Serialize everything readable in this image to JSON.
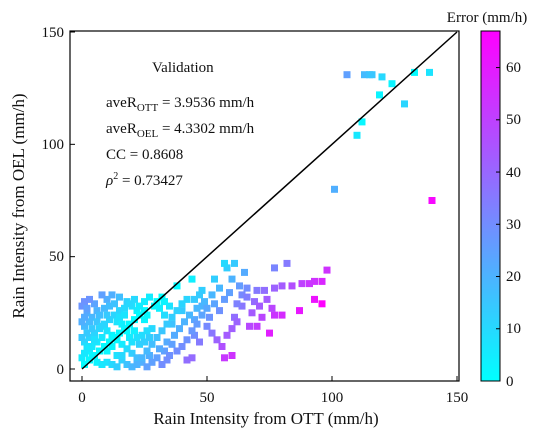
{
  "chart_data": {
    "type": "scatter",
    "title": "",
    "xlabel": "Rain Intensity from OTT (mm/h)",
    "ylabel": "Rain Intensity from OEL (mm/h)",
    "xlim": [
      -5,
      150
    ],
    "ylim": [
      -5,
      150
    ],
    "xticks": [
      "0",
      "50",
      "100",
      "150"
    ],
    "yticks": [
      "0",
      "50",
      "100",
      "150"
    ],
    "grid": false,
    "reference_line": {
      "from": [
        0,
        0
      ],
      "to": [
        150,
        150
      ],
      "color": "#000000"
    },
    "colorbar": {
      "label": "Error (mm/h)",
      "range": [
        0,
        67
      ],
      "ticks": [
        "0",
        "10",
        "20",
        "30",
        "40",
        "50",
        "60"
      ],
      "color_low": "#00ffff",
      "color_high": "#ff00ff"
    },
    "annotation": {
      "title": "Validation",
      "lines": [
        {
          "prefix": "aveR",
          "subscript": "OTT",
          "suffix": " = 3.9536 mm/h"
        },
        {
          "prefix": "aveR",
          "subscript": "OEL",
          "suffix": " = 4.3302 mm/h"
        },
        {
          "prefix": "CC = 0.8608",
          "subscript": "",
          "suffix": ""
        },
        {
          "prefix": "ρ",
          "superscript": "2",
          "suffix": " = 0.73427"
        }
      ]
    },
    "points": [
      [
        106,
        131
      ],
      [
        113,
        131
      ],
      [
        115,
        131
      ],
      [
        116,
        131
      ],
      [
        120,
        130
      ],
      [
        124,
        127
      ],
      [
        119,
        122
      ],
      [
        133,
        132
      ],
      [
        139,
        132
      ],
      [
        129,
        118
      ],
      [
        112,
        110
      ],
      [
        110,
        104
      ],
      [
        101,
        80
      ],
      [
        140,
        75
      ],
      [
        98,
        44
      ],
      [
        96,
        39
      ],
      [
        93,
        39
      ],
      [
        91,
        38
      ],
      [
        88,
        38
      ],
      [
        84,
        37
      ],
      [
        80,
        37
      ],
      [
        77,
        36
      ],
      [
        73,
        35
      ],
      [
        70,
        35
      ],
      [
        66,
        36
      ],
      [
        63,
        37
      ],
      [
        82,
        47
      ],
      [
        77,
        45
      ],
      [
        61,
        47
      ],
      [
        58,
        45
      ],
      [
        57,
        47
      ],
      [
        65,
        43
      ],
      [
        60,
        40
      ],
      [
        53,
        40
      ],
      [
        44,
        40
      ],
      [
        38,
        37
      ],
      [
        48,
        35
      ],
      [
        93,
        31
      ],
      [
        96,
        29
      ],
      [
        87,
        26
      ],
      [
        80,
        24
      ],
      [
        77,
        24
      ],
      [
        72,
        23
      ],
      [
        67,
        19
      ],
      [
        70,
        19
      ],
      [
        75,
        16
      ],
      [
        60,
        6
      ],
      [
        57,
        5
      ],
      [
        47,
        12
      ],
      [
        45,
        15
      ],
      [
        42,
        4
      ],
      [
        44,
        5
      ],
      [
        33,
        8
      ],
      [
        27,
        6
      ],
      [
        68,
        25
      ],
      [
        64,
        28
      ],
      [
        61,
        23
      ],
      [
        55,
        26
      ],
      [
        51,
        23
      ],
      [
        48,
        28
      ],
      [
        45,
        22
      ],
      [
        40,
        26
      ],
      [
        36,
        20
      ],
      [
        33,
        24
      ],
      [
        28,
        18
      ],
      [
        25,
        22
      ],
      [
        22,
        26
      ],
      [
        20,
        28
      ],
      [
        18,
        30
      ],
      [
        15,
        32
      ],
      [
        12,
        33
      ],
      [
        10,
        31
      ],
      [
        8,
        33
      ],
      [
        5,
        29
      ],
      [
        3,
        31
      ],
      [
        1,
        30
      ],
      [
        0,
        28
      ],
      [
        2,
        25
      ],
      [
        4,
        23
      ],
      [
        6,
        21
      ],
      [
        8,
        19
      ],
      [
        10,
        17
      ],
      [
        12,
        15
      ],
      [
        14,
        13
      ],
      [
        16,
        11
      ],
      [
        18,
        9
      ],
      [
        20,
        7
      ],
      [
        22,
        5
      ],
      [
        24,
        3
      ],
      [
        26,
        1
      ],
      [
        1,
        2
      ],
      [
        3,
        4
      ],
      [
        5,
        6
      ],
      [
        7,
        8
      ],
      [
        9,
        10
      ],
      [
        11,
        12
      ],
      [
        13,
        14
      ],
      [
        15,
        16
      ],
      [
        17,
        18
      ],
      [
        19,
        20
      ],
      [
        21,
        22
      ],
      [
        23,
        24
      ],
      [
        25,
        26
      ],
      [
        1,
        12
      ],
      [
        3,
        14
      ],
      [
        5,
        16
      ],
      [
        7,
        18
      ],
      [
        9,
        20
      ],
      [
        11,
        22
      ],
      [
        13,
        24
      ],
      [
        15,
        26
      ],
      [
        17,
        27
      ],
      [
        19,
        29
      ],
      [
        21,
        31
      ],
      [
        23,
        28
      ],
      [
        25,
        30
      ],
      [
        2,
        8
      ],
      [
        4,
        10
      ],
      [
        6,
        12
      ],
      [
        8,
        14
      ],
      [
        10,
        8
      ],
      [
        12,
        10
      ],
      [
        14,
        6
      ],
      [
        16,
        4
      ],
      [
        18,
        2
      ],
      [
        20,
        1
      ],
      [
        22,
        2
      ],
      [
        24,
        5
      ],
      [
        26,
        8
      ],
      [
        28,
        11
      ],
      [
        30,
        14
      ],
      [
        32,
        17
      ],
      [
        34,
        20
      ],
      [
        36,
        23
      ],
      [
        38,
        26
      ],
      [
        40,
        29
      ],
      [
        42,
        31
      ],
      [
        31,
        9
      ],
      [
        34,
        12
      ],
      [
        37,
        15
      ],
      [
        39,
        18
      ],
      [
        41,
        21
      ],
      [
        43,
        24
      ],
      [
        46,
        27
      ],
      [
        49,
        30
      ],
      [
        52,
        33
      ],
      [
        55,
        36
      ],
      [
        50,
        19
      ],
      [
        52,
        16
      ],
      [
        54,
        13
      ],
      [
        56,
        10
      ],
      [
        58,
        15
      ],
      [
        60,
        18
      ],
      [
        62,
        21
      ],
      [
        64,
        33
      ],
      [
        30,
        30
      ],
      [
        32,
        32
      ],
      [
        27,
        32
      ],
      [
        29,
        28
      ],
      [
        35,
        28
      ],
      [
        26,
        24
      ],
      [
        31,
        27
      ],
      [
        33,
        30
      ],
      [
        28,
        3
      ],
      [
        30,
        5
      ],
      [
        32,
        2
      ],
      [
        35,
        6
      ],
      [
        1,
        19
      ],
      [
        2,
        16
      ],
      [
        3,
        21
      ],
      [
        4,
        18
      ],
      [
        5,
        13
      ],
      [
        6,
        26
      ],
      [
        7,
        24
      ],
      [
        9,
        27
      ],
      [
        10,
        24
      ],
      [
        11,
        28
      ],
      [
        13,
        29
      ],
      [
        14,
        21
      ],
      [
        15,
        23
      ],
      [
        16,
        20
      ],
      [
        17,
        24
      ],
      [
        18,
        17
      ],
      [
        19,
        14
      ],
      [
        20,
        12
      ],
      [
        21,
        17
      ],
      [
        22,
        14
      ],
      [
        23,
        11
      ],
      [
        24,
        15
      ],
      [
        25,
        12
      ],
      [
        26,
        17
      ],
      [
        27,
        14
      ],
      [
        0,
        5
      ],
      [
        1,
        7
      ],
      [
        2,
        10
      ],
      [
        0,
        14
      ],
      [
        1,
        23
      ],
      [
        0,
        21
      ],
      [
        2,
        27
      ],
      [
        3,
        9
      ],
      [
        4,
        6
      ],
      [
        6,
        3
      ],
      [
        8,
        2
      ],
      [
        10,
        3
      ],
      [
        12,
        2
      ],
      [
        14,
        1
      ],
      [
        16,
        6
      ],
      [
        40,
        10
      ],
      [
        42,
        13
      ],
      [
        44,
        17
      ],
      [
        46,
        20
      ],
      [
        48,
        24
      ],
      [
        50,
        27
      ],
      [
        36,
        11
      ],
      [
        38,
        8
      ],
      [
        34,
        4
      ],
      [
        45,
        31
      ],
      [
        47,
        33
      ],
      [
        53,
        29
      ],
      [
        57,
        31
      ],
      [
        59,
        34
      ],
      [
        62,
        29
      ],
      [
        66,
        32
      ],
      [
        69,
        30
      ],
      [
        71,
        28
      ],
      [
        74,
        31
      ],
      [
        76,
        27
      ]
    ]
  }
}
